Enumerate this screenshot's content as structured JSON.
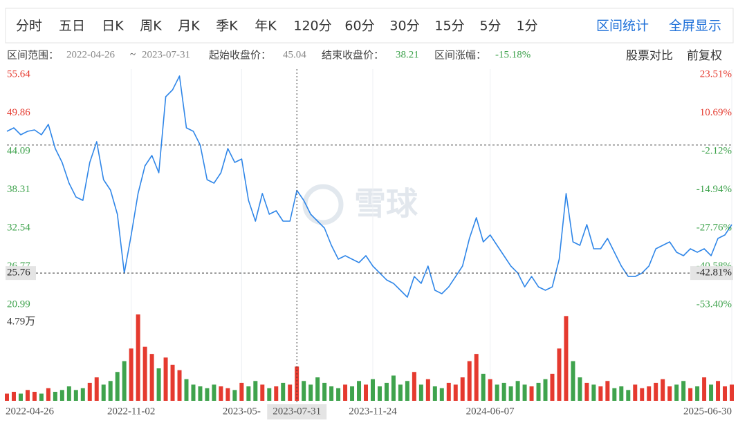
{
  "toolbar": {
    "tabs": [
      "分时",
      "五日",
      "日K",
      "周K",
      "月K",
      "季K",
      "年K",
      "120分",
      "60分",
      "30分",
      "15分",
      "5分",
      "1分"
    ],
    "links": [
      "区间统计",
      "全屏显示"
    ]
  },
  "info": {
    "range_label": "区间范围：",
    "range_start": "2022-04-26",
    "range_sep": "~",
    "range_end": "2023-07-31",
    "start_label": "起始收盘价：",
    "end_label": "结束收盘价：",
    "end_close": "38.21",
    "change_label": "区间涨幅：",
    "change": "-15.18%",
    "compare": "股票对比",
    "adjust": "前复权"
  },
  "watermark": "雪球",
  "chart_data": [
    {
      "type": "line",
      "color": "#2f86e8",
      "base_value": 45.04,
      "categories": [
        "2022-04-26",
        null,
        null,
        null,
        null,
        null,
        null,
        null,
        null,
        null,
        null,
        null,
        null,
        null,
        null,
        null,
        null,
        null,
        "2022-11-02",
        null,
        null,
        null,
        null,
        null,
        null,
        null,
        null,
        null,
        null,
        null,
        null,
        null,
        null,
        null,
        "2023-05-",
        null,
        null,
        null,
        null,
        null,
        null,
        null,
        "2023-07-31",
        null,
        null,
        null,
        null,
        null,
        null,
        null,
        null,
        null,
        null,
        "2023-11-24",
        null,
        null,
        null,
        null,
        null,
        null,
        null,
        null,
        null,
        null,
        null,
        null,
        null,
        null,
        null,
        null,
        "2024-06-07",
        null,
        null,
        null,
        null,
        null,
        null,
        null,
        null,
        null,
        null,
        null,
        null,
        null,
        null,
        null,
        null,
        null,
        null,
        null,
        null,
        null,
        null,
        null,
        null,
        null,
        null,
        null,
        null,
        null,
        null,
        null,
        null,
        null,
        null,
        "2025-06-30"
      ],
      "values": [
        47.11,
        47.63,
        46.59,
        47.11,
        47.32,
        46.59,
        48.15,
        44.51,
        42.42,
        39.3,
        37.22,
        36.7,
        42.42,
        45.55,
        39.82,
        38.26,
        34.62,
        25.77,
        31.5,
        37.74,
        41.9,
        43.47,
        40.86,
        52.31,
        53.35,
        55.43,
        47.63,
        47.11,
        45.03,
        39.82,
        39.3,
        40.86,
        44.51,
        42.42,
        42.94,
        36.7,
        33.58,
        37.74,
        34.62,
        35.14,
        33.58,
        33.58,
        38.21,
        36.7,
        34.62,
        33.58,
        32.54,
        29.94,
        27.86,
        28.38,
        27.86,
        27.34,
        28.38,
        26.82,
        25.77,
        24.73,
        24.21,
        23.17,
        22.13,
        25.25,
        24.21,
        26.82,
        23.17,
        22.65,
        23.69,
        25.25,
        26.82,
        30.98,
        34.1,
        30.46,
        31.5,
        29.94,
        28.38,
        26.82,
        25.77,
        23.69,
        25.25,
        23.69,
        23.17,
        23.69,
        27.86,
        37.74,
        30.46,
        29.94,
        33.06,
        29.42,
        29.42,
        30.98,
        28.9,
        26.82,
        25.25,
        25.25,
        25.77,
        26.82,
        29.42,
        29.94,
        30.46,
        28.9,
        28.38,
        29.42,
        28.9,
        29.42,
        28.38,
        30.98,
        31.5,
        33.06
      ],
      "ylim": [
        20.99,
        55.64
      ],
      "yticks": [
        55.64,
        49.86,
        44.09,
        38.31,
        32.54,
        26.77,
        20.99
      ],
      "y2lim": [
        -53.4,
        23.51
      ],
      "y2ticks": [
        {
          "value": 23.51,
          "label": "23.51%"
        },
        {
          "value": 10.69,
          "label": "10.69%"
        },
        {
          "value": -2.12,
          "label": "-2.12%"
        },
        {
          "value": -14.94,
          "label": "-14.94%"
        },
        {
          "value": -27.76,
          "label": "-27.76%"
        },
        {
          "value": -40.58,
          "label": "-40.58%"
        },
        {
          "value": -53.4,
          "label": "-53.40%"
        }
      ],
      "crosshair_y": 25.76,
      "crosshair_y2": {
        "value": -42.81,
        "label": "-42.81%"
      },
      "up_color": "#e53a2f",
      "down_color": "#3fa34d"
    },
    {
      "type": "bar",
      "values": [
        0.4,
        0.5,
        0.4,
        0.6,
        0.5,
        0.4,
        0.7,
        0.5,
        0.6,
        0.8,
        0.6,
        0.7,
        1.0,
        1.3,
        0.9,
        1.1,
        1.6,
        2.2,
        2.9,
        4.79,
        3.0,
        2.6,
        1.8,
        2.4,
        2.0,
        1.7,
        1.2,
        0.9,
        0.8,
        0.7,
        0.9,
        0.8,
        0.7,
        0.6,
        1.0,
        0.8,
        1.1,
        0.9,
        0.7,
        0.8,
        1.0,
        0.9,
        1.9,
        1.1,
        0.9,
        1.3,
        1.0,
        0.8,
        0.7,
        0.9,
        0.8,
        1.1,
        0.9,
        1.2,
        0.8,
        1.0,
        1.4,
        0.9,
        1.1,
        1.6,
        0.9,
        1.2,
        0.8,
        0.7,
        1.0,
        0.9,
        1.3,
        2.2,
        2.6,
        1.5,
        1.2,
        0.9,
        1.0,
        0.8,
        1.1,
        0.9,
        0.8,
        1.0,
        1.2,
        1.5,
        2.9,
        4.7,
        2.2,
        1.3,
        1.0,
        0.9,
        0.8,
        1.1,
        0.7,
        0.8,
        0.6,
        0.9,
        0.7,
        0.8,
        1.0,
        1.2,
        0.8,
        0.9,
        1.1,
        0.7,
        0.8,
        1.3,
        0.9,
        1.1,
        0.8,
        0.9
      ],
      "ylim": [
        0,
        4.79
      ],
      "yticks": [
        {
          "value": 4.79,
          "label": "4.79万"
        }
      ]
    }
  ]
}
